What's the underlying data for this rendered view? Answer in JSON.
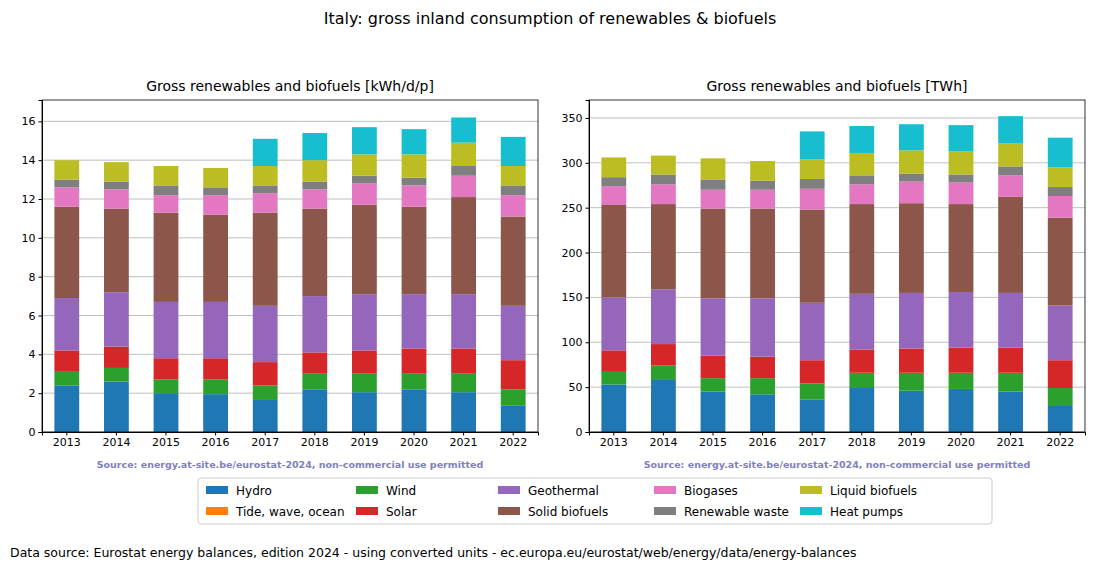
{
  "title": "Italy: gross inland consumption of renewables & biofuels",
  "footer": "Data source: Eurostat energy balances, edition 2024 - using converted units - ec.europa.eu/eurostat/web/energy/data/energy-balances",
  "chart_data": [
    {
      "type": "bar",
      "title": "Gross renewables and biofuels [kWh/d/p]",
      "annotations": [
        "Source: energy.at-site.be/eurostat-2024, non-commercial use permitted"
      ],
      "stacked": true,
      "grid": true,
      "legend": "bottom",
      "categories": [
        "2013",
        "2014",
        "2015",
        "2016",
        "2017",
        "2018",
        "2019",
        "2020",
        "2021",
        "2022"
      ],
      "ylim": [
        0,
        17.1
      ],
      "yticks": [
        0,
        2,
        4,
        6,
        8,
        10,
        12,
        14,
        16
      ],
      "series": [
        {
          "name": "Hydro",
          "color": "#1f77b4",
          "values": [
            2.4,
            2.6,
            2.0,
            1.95,
            1.65,
            2.2,
            2.05,
            2.2,
            2.05,
            1.35
          ]
        },
        {
          "name": "Tide, wave, ocean",
          "color": "#ff7f0e",
          "values": [
            0,
            0,
            0,
            0,
            0,
            0,
            0,
            0,
            0,
            0
          ]
        },
        {
          "name": "Wind",
          "color": "#2ca02c",
          "values": [
            0.7,
            0.7,
            0.7,
            0.75,
            0.75,
            0.8,
            0.95,
            0.8,
            0.95,
            0.85
          ]
        },
        {
          "name": "Solar",
          "color": "#d62728",
          "values": [
            1.1,
            1.1,
            1.1,
            1.1,
            1.2,
            1.1,
            1.2,
            1.3,
            1.3,
            1.5
          ]
        },
        {
          "name": "Geothermal",
          "color": "#9467bd",
          "values": [
            2.7,
            2.8,
            2.9,
            2.9,
            2.9,
            2.9,
            2.9,
            2.8,
            2.8,
            2.8
          ]
        },
        {
          "name": "Solid biofuels",
          "color": "#8c564b",
          "values": [
            4.7,
            4.3,
            4.6,
            4.5,
            4.8,
            4.5,
            4.6,
            4.5,
            5.0,
            4.6
          ]
        },
        {
          "name": "Biogases",
          "color": "#e377c2",
          "values": [
            1.0,
            1.0,
            0.9,
            1.0,
            1.0,
            1.0,
            1.1,
            1.1,
            1.1,
            1.1
          ]
        },
        {
          "name": "Renewable waste",
          "color": "#7f7f7f",
          "values": [
            0.4,
            0.4,
            0.5,
            0.4,
            0.4,
            0.4,
            0.4,
            0.4,
            0.5,
            0.5
          ]
        },
        {
          "name": "Liquid biofuels",
          "color": "#bcbd22",
          "values": [
            1.0,
            1.0,
            1.0,
            1.0,
            1.0,
            1.1,
            1.1,
            1.2,
            1.2,
            1.0
          ]
        },
        {
          "name": "Heat pumps",
          "color": "#17becf",
          "values": [
            0,
            0,
            0,
            0,
            1.4,
            1.4,
            1.4,
            1.3,
            1.3,
            1.5
          ]
        }
      ]
    },
    {
      "type": "bar",
      "title": "Gross renewables and biofuels [TWh]",
      "annotations": [
        "Source: energy.at-site.be/eurostat-2024, non-commercial use permitted"
      ],
      "stacked": true,
      "grid": true,
      "categories": [
        "2013",
        "2014",
        "2015",
        "2016",
        "2017",
        "2018",
        "2019",
        "2020",
        "2021",
        "2022"
      ],
      "ylim": [
        0,
        370
      ],
      "yticks": [
        0,
        50,
        100,
        150,
        200,
        250,
        300,
        350
      ],
      "series": [
        {
          "name": "Hydro",
          "color": "#1f77b4",
          "values": [
            53,
            58,
            45,
            42,
            36,
            49,
            46,
            48,
            45,
            29
          ]
        },
        {
          "name": "Tide, wave, ocean",
          "color": "#ff7f0e",
          "values": [
            0,
            0,
            0,
            0,
            0,
            0,
            0,
            0,
            0,
            0
          ]
        },
        {
          "name": "Wind",
          "color": "#2ca02c",
          "values": [
            14,
            16,
            15,
            18,
            18,
            17,
            20,
            18,
            21,
            20
          ]
        },
        {
          "name": "Solar",
          "color": "#d62728",
          "values": [
            24,
            24,
            25,
            24,
            26,
            26,
            27,
            28,
            28,
            31
          ]
        },
        {
          "name": "Geothermal",
          "color": "#9467bd",
          "values": [
            59,
            61,
            64,
            65,
            64,
            62,
            62,
            62,
            61,
            61
          ]
        },
        {
          "name": "Solid biofuels",
          "color": "#8c564b",
          "values": [
            103,
            95,
            100,
            100,
            104,
            100,
            100,
            98,
            107,
            98
          ]
        },
        {
          "name": "Biogases",
          "color": "#e377c2",
          "values": [
            21,
            22,
            21,
            21,
            23,
            22,
            24,
            24,
            24,
            24
          ]
        },
        {
          "name": "Renewable waste",
          "color": "#7f7f7f",
          "values": [
            10,
            11,
            11,
            10,
            11,
            10,
            9,
            9,
            10,
            10
          ]
        },
        {
          "name": "Liquid biofuels",
          "color": "#bcbd22",
          "values": [
            22,
            21,
            24,
            22,
            22,
            25,
            26,
            26,
            26,
            22
          ]
        },
        {
          "name": "Heat pumps",
          "color": "#17becf",
          "values": [
            0,
            0,
            0,
            0,
            31,
            30,
            29,
            29,
            30,
            33
          ]
        }
      ]
    }
  ]
}
